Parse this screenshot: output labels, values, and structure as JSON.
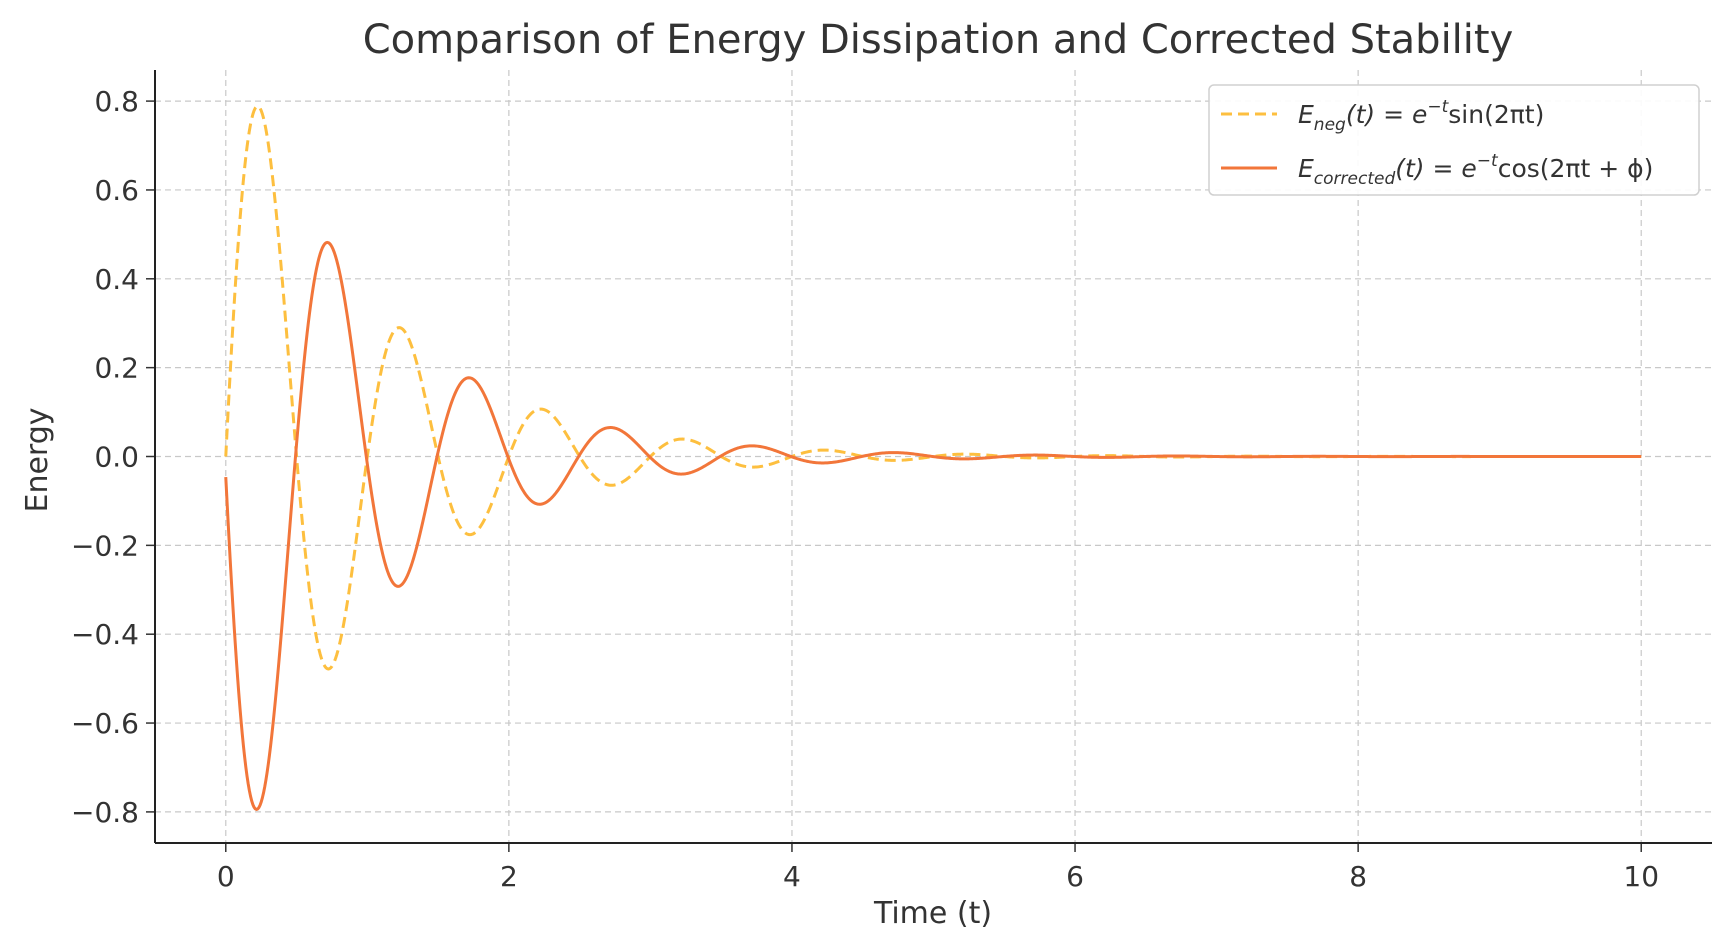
{
  "chart_data": {
    "type": "line",
    "title": "Comparison of Energy Dissipation and Corrected Stability",
    "xlabel": "Time (t)",
    "ylabel": "Energy",
    "xlim": [
      -0.5,
      10.5
    ],
    "ylim": [
      -0.87,
      0.87
    ],
    "xticks": [
      0,
      2,
      4,
      6,
      8,
      10
    ],
    "xtick_labels": [
      "0",
      "2",
      "4",
      "6",
      "8",
      "10"
    ],
    "yticks": [
      0.8,
      0.6,
      0.4,
      0.2,
      0.0,
      -0.2,
      -0.4,
      -0.6,
      -0.8
    ],
    "ytick_labels": [
      "0.8",
      "0.6",
      "0.4",
      "0.2",
      "0.0",
      "−0.2",
      "−0.4",
      "−0.6",
      "−0.8"
    ],
    "grid": true,
    "legend_position": "top-right",
    "x_range": [
      0,
      10
    ],
    "series": [
      {
        "name": "E_neg(t) = e^{-t} sin(2πt)",
        "legend_main": "E",
        "legend_sub": "neg",
        "legend_rest": "(t) = e",
        "legend_sup": "−t",
        "legend_tail": "sin(2πt)",
        "formula": "exp(-t)*sin(2*pi*t)",
        "phase": 0,
        "color": "#FDBF3F",
        "style": "dashed",
        "peaks": [
          {
            "x": 0.23,
            "y": 0.79
          },
          {
            "x": 0.73,
            "y": -0.48
          },
          {
            "x": 1.23,
            "y": 0.29
          },
          {
            "x": 1.73,
            "y": -0.18
          },
          {
            "x": 2.23,
            "y": 0.11
          }
        ]
      },
      {
        "name": "E_corrected(t) = e^{-t} cos(2πt + φ)",
        "legend_main": "E",
        "legend_sub": "corrected",
        "legend_rest": "(t) = e",
        "legend_sup": "−t",
        "legend_tail": "cos(2πt + ϕ)",
        "formula": "exp(-t)*cos(2*pi*t+phi)",
        "phase": 1.617,
        "color": "#F2763A",
        "style": "solid",
        "peaks": [
          {
            "x": 0.0,
            "y": -0.05
          },
          {
            "x": 0.21,
            "y": -0.8
          },
          {
            "x": 0.71,
            "y": 0.48
          },
          {
            "x": 1.21,
            "y": -0.29
          },
          {
            "x": 1.71,
            "y": 0.18
          },
          {
            "x": 2.21,
            "y": -0.11
          }
        ]
      }
    ]
  }
}
